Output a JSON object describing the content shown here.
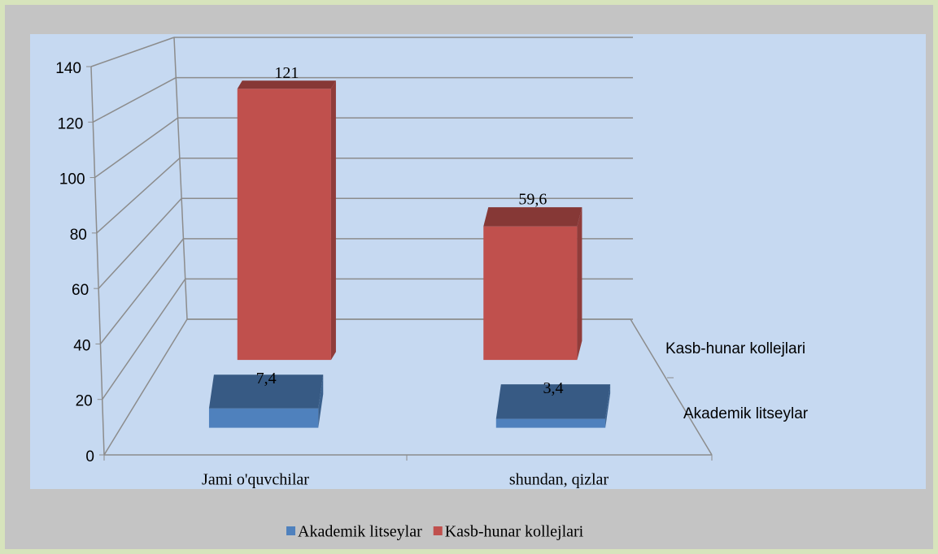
{
  "chart_data": {
    "type": "bar3d",
    "categories": [
      "Jami o'quvchilar",
      "shundan, qizlar"
    ],
    "series": [
      {
        "name": "Akademik litseylar",
        "color": "#4f81bd",
        "values": [
          7.4,
          3.4
        ],
        "value_labels": [
          "7,4",
          "3,4"
        ]
      },
      {
        "name": "Kasb-hunar kollejlari",
        "color": "#c0504d",
        "values": [
          121,
          59.6
        ],
        "value_labels": [
          "121",
          "59,6"
        ]
      }
    ],
    "ylim": [
      0,
      140
    ],
    "yticks": [
      0,
      20,
      40,
      60,
      80,
      100,
      120,
      140
    ],
    "grid": true,
    "legend": "bottom"
  }
}
